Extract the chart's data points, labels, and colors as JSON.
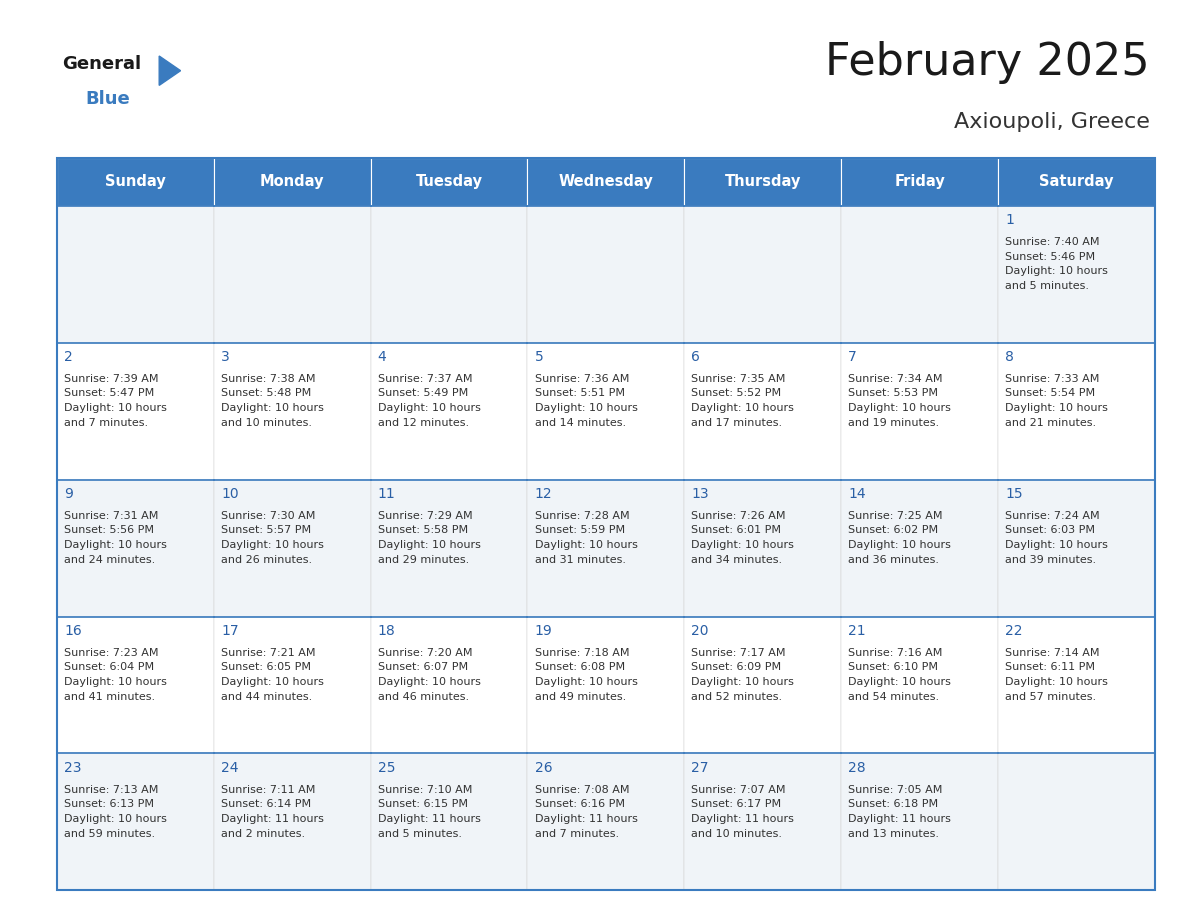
{
  "title": "February 2025",
  "subtitle": "Axioupoli, Greece",
  "header_color": "#3a7bbf",
  "header_text_color": "#ffffff",
  "days_of_week": [
    "Sunday",
    "Monday",
    "Tuesday",
    "Wednesday",
    "Thursday",
    "Friday",
    "Saturday"
  ],
  "background_color": "#ffffff",
  "cell_bg_row0": "#f0f4f8",
  "cell_bg_row1": "#ffffff",
  "cell_bg_row2": "#ffffff",
  "cell_bg_row3": "#ffffff",
  "cell_bg_row4": "#f0f4f8",
  "day_number_color": "#2a5fa5",
  "info_text_color": "#333333",
  "border_color": "#3a7bbf",
  "title_fontsize": 32,
  "subtitle_fontsize": 16,
  "header_fontsize": 10.5,
  "day_num_fontsize": 10,
  "info_fontsize": 8,
  "calendar": [
    [
      null,
      null,
      null,
      null,
      null,
      null,
      {
        "day": 1,
        "sunrise": "7:40 AM",
        "sunset": "5:46 PM",
        "daylight": "10 hours and 5 minutes."
      }
    ],
    [
      {
        "day": 2,
        "sunrise": "7:39 AM",
        "sunset": "5:47 PM",
        "daylight": "10 hours and 7 minutes."
      },
      {
        "day": 3,
        "sunrise": "7:38 AM",
        "sunset": "5:48 PM",
        "daylight": "10 hours and 10 minutes."
      },
      {
        "day": 4,
        "sunrise": "7:37 AM",
        "sunset": "5:49 PM",
        "daylight": "10 hours and 12 minutes."
      },
      {
        "day": 5,
        "sunrise": "7:36 AM",
        "sunset": "5:51 PM",
        "daylight": "10 hours and 14 minutes."
      },
      {
        "day": 6,
        "sunrise": "7:35 AM",
        "sunset": "5:52 PM",
        "daylight": "10 hours and 17 minutes."
      },
      {
        "day": 7,
        "sunrise": "7:34 AM",
        "sunset": "5:53 PM",
        "daylight": "10 hours and 19 minutes."
      },
      {
        "day": 8,
        "sunrise": "7:33 AM",
        "sunset": "5:54 PM",
        "daylight": "10 hours and 21 minutes."
      }
    ],
    [
      {
        "day": 9,
        "sunrise": "7:31 AM",
        "sunset": "5:56 PM",
        "daylight": "10 hours and 24 minutes."
      },
      {
        "day": 10,
        "sunrise": "7:30 AM",
        "sunset": "5:57 PM",
        "daylight": "10 hours and 26 minutes."
      },
      {
        "day": 11,
        "sunrise": "7:29 AM",
        "sunset": "5:58 PM",
        "daylight": "10 hours and 29 minutes."
      },
      {
        "day": 12,
        "sunrise": "7:28 AM",
        "sunset": "5:59 PM",
        "daylight": "10 hours and 31 minutes."
      },
      {
        "day": 13,
        "sunrise": "7:26 AM",
        "sunset": "6:01 PM",
        "daylight": "10 hours and 34 minutes."
      },
      {
        "day": 14,
        "sunrise": "7:25 AM",
        "sunset": "6:02 PM",
        "daylight": "10 hours and 36 minutes."
      },
      {
        "day": 15,
        "sunrise": "7:24 AM",
        "sunset": "6:03 PM",
        "daylight": "10 hours and 39 minutes."
      }
    ],
    [
      {
        "day": 16,
        "sunrise": "7:23 AM",
        "sunset": "6:04 PM",
        "daylight": "10 hours and 41 minutes."
      },
      {
        "day": 17,
        "sunrise": "7:21 AM",
        "sunset": "6:05 PM",
        "daylight": "10 hours and 44 minutes."
      },
      {
        "day": 18,
        "sunrise": "7:20 AM",
        "sunset": "6:07 PM",
        "daylight": "10 hours and 46 minutes."
      },
      {
        "day": 19,
        "sunrise": "7:18 AM",
        "sunset": "6:08 PM",
        "daylight": "10 hours and 49 minutes."
      },
      {
        "day": 20,
        "sunrise": "7:17 AM",
        "sunset": "6:09 PM",
        "daylight": "10 hours and 52 minutes."
      },
      {
        "day": 21,
        "sunrise": "7:16 AM",
        "sunset": "6:10 PM",
        "daylight": "10 hours and 54 minutes."
      },
      {
        "day": 22,
        "sunrise": "7:14 AM",
        "sunset": "6:11 PM",
        "daylight": "10 hours and 57 minutes."
      }
    ],
    [
      {
        "day": 23,
        "sunrise": "7:13 AM",
        "sunset": "6:13 PM",
        "daylight": "10 hours and 59 minutes."
      },
      {
        "day": 24,
        "sunrise": "7:11 AM",
        "sunset": "6:14 PM",
        "daylight": "11 hours and 2 minutes."
      },
      {
        "day": 25,
        "sunrise": "7:10 AM",
        "sunset": "6:15 PM",
        "daylight": "11 hours and 5 minutes."
      },
      {
        "day": 26,
        "sunrise": "7:08 AM",
        "sunset": "6:16 PM",
        "daylight": "11 hours and 7 minutes."
      },
      {
        "day": 27,
        "sunrise": "7:07 AM",
        "sunset": "6:17 PM",
        "daylight": "11 hours and 10 minutes."
      },
      {
        "day": 28,
        "sunrise": "7:05 AM",
        "sunset": "6:18 PM",
        "daylight": "11 hours and 13 minutes."
      },
      null
    ]
  ]
}
